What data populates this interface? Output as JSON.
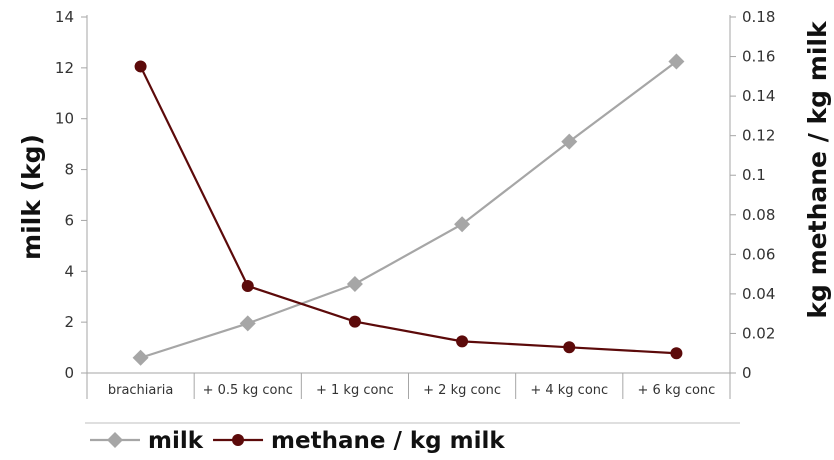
{
  "chart_data": {
    "type": "line",
    "categories": [
      "brachiaria",
      "+ 0.5 kg conc",
      "+ 1 kg conc",
      "+ 2 kg conc",
      "+ 4 kg conc",
      "+ 6 kg conc"
    ],
    "series": [
      {
        "name": "milk",
        "axis": "left",
        "marker": "diamond",
        "color": "#a6a6a6",
        "values": [
          0.6,
          1.95,
          3.5,
          5.85,
          9.1,
          12.25
        ]
      },
      {
        "name": "methane / kg milk",
        "axis": "right",
        "marker": "circle",
        "color": "#5c0a0a",
        "values": [
          0.155,
          0.044,
          0.026,
          0.016,
          0.013,
          0.01
        ]
      }
    ],
    "y_left": {
      "label": "milk (kg)",
      "ylim": [
        0,
        14
      ],
      "ticks": [
        "0",
        "2",
        "4",
        "6",
        "8",
        "10",
        "12",
        "14"
      ]
    },
    "y_right": {
      "label": "kg methane / kg milk",
      "ylim": [
        0,
        0.18
      ],
      "ticks": [
        "0",
        "0.02",
        "0.04",
        "0.06",
        "0.08",
        "0.1",
        "0.12",
        "0.14",
        "0.16",
        "0.18"
      ]
    },
    "grid": false,
    "legend": "bottom-left"
  }
}
